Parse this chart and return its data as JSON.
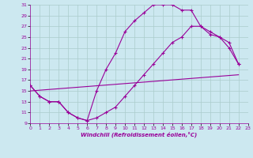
{
  "xlabel": "Windchill (Refroidissement éolien,°C)",
  "xlim": [
    0,
    23
  ],
  "ylim": [
    9,
    31
  ],
  "yticks": [
    9,
    11,
    13,
    15,
    17,
    19,
    21,
    23,
    25,
    27,
    29,
    31
  ],
  "xticks": [
    0,
    1,
    2,
    3,
    4,
    5,
    6,
    7,
    8,
    9,
    10,
    11,
    12,
    13,
    14,
    15,
    16,
    17,
    18,
    19,
    20,
    21,
    22,
    23
  ],
  "bg_color": "#cce8f0",
  "line_color": "#990099",
  "grid_color": "#aacccc",
  "line1_x": [
    0,
    1,
    2,
    3,
    4,
    5,
    6,
    7,
    8,
    9,
    10,
    11,
    12,
    13,
    14,
    15,
    16,
    17,
    18,
    19,
    20,
    21,
    22
  ],
  "line1_y": [
    16,
    14,
    13,
    13,
    11,
    10,
    9.5,
    15,
    19,
    22,
    26,
    28,
    29.5,
    31,
    31,
    31,
    30,
    30,
    27,
    26,
    25,
    24,
    20
  ],
  "line2_x": [
    0,
    1,
    2,
    3,
    4,
    5,
    6,
    7,
    8,
    9,
    10,
    11,
    12,
    13,
    14,
    15,
    16,
    17,
    18,
    19,
    20,
    21,
    22
  ],
  "line2_y": [
    16,
    14,
    13,
    13,
    11,
    10,
    9.5,
    10,
    11,
    12,
    14,
    16,
    18,
    20,
    22,
    24,
    25,
    27,
    27,
    25.5,
    25,
    23,
    20
  ],
  "line3_x": [
    0,
    22
  ],
  "line3_y": [
    15,
    18
  ]
}
